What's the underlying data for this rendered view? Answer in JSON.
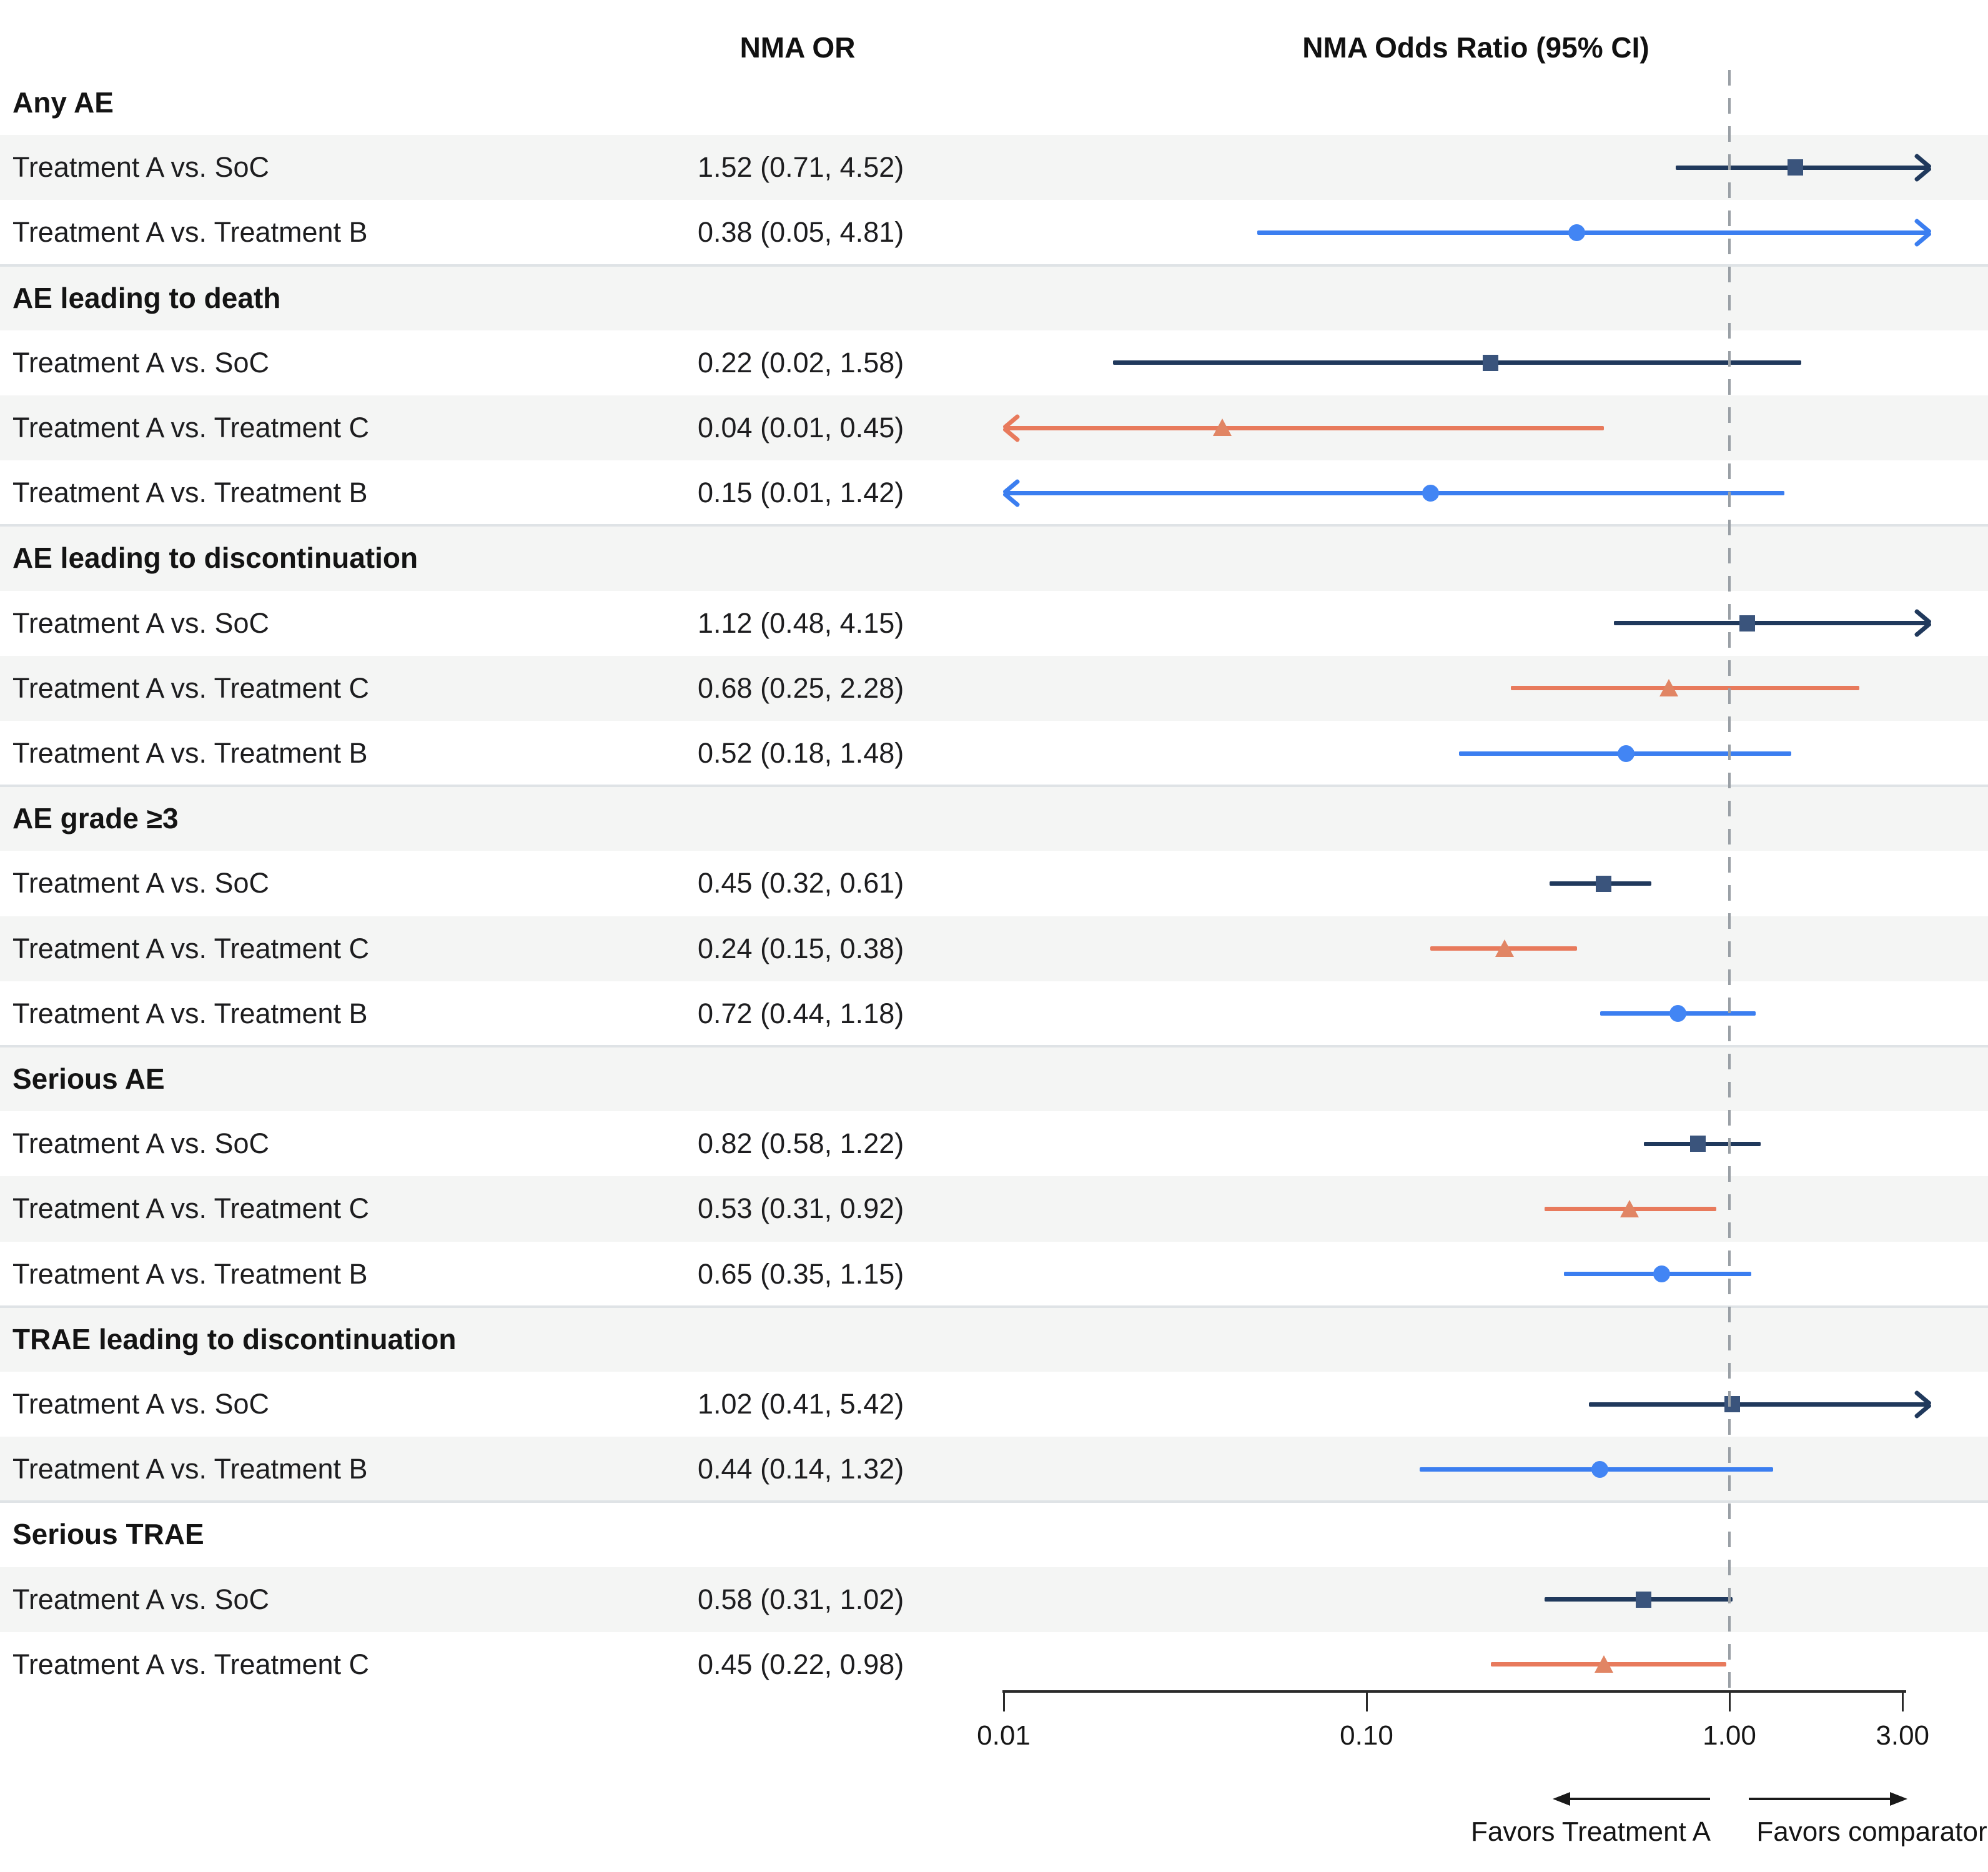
{
  "columns": {
    "or_header": "NMA OR",
    "plot_header": "NMA Odds Ratio (95% CI)"
  },
  "colors": {
    "row_stripe": "#f4f5f4",
    "separator": "#dfe3e6",
    "reference_dash": "#9aa0a6",
    "axis": "#2a2a2a",
    "soc_line": "#20395c",
    "soc_marker": "#3a547c",
    "treatment_b_line": "#3b7ef0",
    "treatment_b_marker": "#4285f4",
    "treatment_c_line": "#e87a5c",
    "treatment_c_marker": "#e18564"
  },
  "chart_data": {
    "type": "forest",
    "title": "NMA Odds Ratio (95% CI)",
    "x_axis": {
      "scale": "log10",
      "ticks": [
        0.01,
        0.1,
        1.0,
        3.0
      ],
      "tick_labels": [
        "0.01",
        "0.10",
        "1.00",
        "3.00"
      ],
      "range": [
        0.01,
        3.59
      ],
      "reference_line": 1.0,
      "grid": false
    },
    "marker_legend": {
      "soc": "square",
      "treatment-c": "triangle",
      "treatment-b": "circle"
    },
    "footer": {
      "left_arrow_label": "Favors Treatment A",
      "right_arrow_label": "Favors comparator"
    },
    "groups": [
      {
        "label": "Any AE",
        "rows": [
          {
            "label": "Treatment A vs. SoC",
            "or_text": "1.52 (0.71, 4.52)",
            "est": 1.52,
            "lo": 0.71,
            "hi": 4.52,
            "comparator": "soc"
          },
          {
            "label": "Treatment A vs. Treatment B",
            "or_text": "0.38 (0.05, 4.81)",
            "est": 0.38,
            "lo": 0.05,
            "hi": 4.81,
            "comparator": "treatment-b"
          }
        ]
      },
      {
        "label": "AE leading to death",
        "rows": [
          {
            "label": "Treatment A vs. SoC",
            "or_text": "0.22 (0.02, 1.58)",
            "est": 0.22,
            "lo": 0.02,
            "hi": 1.58,
            "comparator": "soc"
          },
          {
            "label": "Treatment A vs. Treatment C",
            "or_text": "0.04 (0.01, 0.45)",
            "est": 0.04,
            "lo": 0.01,
            "hi": 0.45,
            "comparator": "treatment-c"
          },
          {
            "label": "Treatment A vs. Treatment B",
            "or_text": "0.15 (0.01, 1.42)",
            "est": 0.15,
            "lo": 0.01,
            "hi": 1.42,
            "comparator": "treatment-b"
          }
        ]
      },
      {
        "label": "AE leading to discontinuation",
        "rows": [
          {
            "label": "Treatment A vs. SoC",
            "or_text": "1.12 (0.48, 4.15)",
            "est": 1.12,
            "lo": 0.48,
            "hi": 4.15,
            "comparator": "soc"
          },
          {
            "label": "Treatment A vs. Treatment C",
            "or_text": "0.68 (0.25, 2.28)",
            "est": 0.68,
            "lo": 0.25,
            "hi": 2.28,
            "comparator": "treatment-c"
          },
          {
            "label": "Treatment A vs. Treatment B",
            "or_text": "0.52 (0.18, 1.48)",
            "est": 0.52,
            "lo": 0.18,
            "hi": 1.48,
            "comparator": "treatment-b"
          }
        ]
      },
      {
        "label": "AE grade ≥3",
        "rows": [
          {
            "label": "Treatment A vs. SoC",
            "or_text": "0.45 (0.32, 0.61)",
            "est": 0.45,
            "lo": 0.32,
            "hi": 0.61,
            "comparator": "soc"
          },
          {
            "label": "Treatment A vs. Treatment C",
            "or_text": "0.24 (0.15, 0.38)",
            "est": 0.24,
            "lo": 0.15,
            "hi": 0.38,
            "comparator": "treatment-c"
          },
          {
            "label": "Treatment A vs. Treatment B",
            "or_text": "0.72 (0.44, 1.18)",
            "est": 0.72,
            "lo": 0.44,
            "hi": 1.18,
            "comparator": "treatment-b"
          }
        ]
      },
      {
        "label": "Serious AE",
        "rows": [
          {
            "label": "Treatment A vs. SoC",
            "or_text": "0.82 (0.58, 1.22)",
            "est": 0.82,
            "lo": 0.58,
            "hi": 1.22,
            "comparator": "soc"
          },
          {
            "label": "Treatment A vs. Treatment C",
            "or_text": "0.53 (0.31, 0.92)",
            "est": 0.53,
            "lo": 0.31,
            "hi": 0.92,
            "comparator": "treatment-c"
          },
          {
            "label": "Treatment A vs. Treatment B",
            "or_text": "0.65 (0.35, 1.15)",
            "est": 0.65,
            "lo": 0.35,
            "hi": 1.15,
            "comparator": "treatment-b"
          }
        ]
      },
      {
        "label": "TRAE leading to discontinuation",
        "rows": [
          {
            "label": "Treatment A vs. SoC",
            "or_text": "1.02 (0.41, 5.42)",
            "est": 1.02,
            "lo": 0.41,
            "hi": 5.42,
            "comparator": "soc"
          },
          {
            "label": "Treatment A vs. Treatment B",
            "or_text": "0.44 (0.14, 1.32)",
            "est": 0.44,
            "lo": 0.14,
            "hi": 1.32,
            "comparator": "treatment-b"
          }
        ]
      },
      {
        "label": "Serious TRAE",
        "rows": [
          {
            "label": "Treatment A vs. SoC",
            "or_text": "0.58 (0.31, 1.02)",
            "est": 0.58,
            "lo": 0.31,
            "hi": 1.02,
            "comparator": "soc"
          },
          {
            "label": "Treatment A vs. Treatment C",
            "or_text": "0.45 (0.22, 0.98)",
            "est": 0.45,
            "lo": 0.22,
            "hi": 0.98,
            "comparator": "treatment-c"
          }
        ]
      }
    ]
  }
}
